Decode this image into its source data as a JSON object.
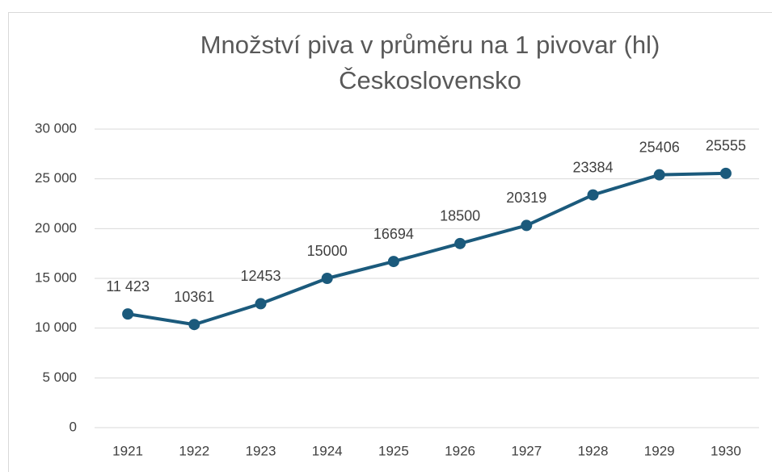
{
  "chart_data": {
    "type": "line",
    "title": [
      "Množství piva v průměru na 1 pivovar (hl)",
      "Československo"
    ],
    "categories": [
      "1921",
      "1922",
      "1923",
      "1924",
      "1925",
      "1926",
      "1927",
      "1928",
      "1929",
      "1930"
    ],
    "series": [
      {
        "color": "#1b5a7c",
        "values": [
          11423,
          10361,
          12453,
          15000,
          16694,
          18500,
          20319,
          23384,
          25406,
          25555
        ],
        "value_labels": [
          "11 423",
          "10361",
          "12453",
          "15000",
          "16694",
          "18500",
          "20319",
          "23384",
          "25406",
          "25555"
        ]
      }
    ],
    "ylim": [
      0,
      30000
    ],
    "yticks": [
      0,
      {
        "value": 5000,
        "label": "5 000"
      },
      {
        "value": 10000,
        "label": "10 000"
      },
      {
        "value": 15000,
        "label": "15 000"
      },
      {
        "value": 20000,
        "label": "20 000"
      },
      {
        "value": 25000,
        "label": "25 000"
      },
      {
        "value": 30000,
        "label": "30 000"
      }
    ],
    "grid": true
  }
}
